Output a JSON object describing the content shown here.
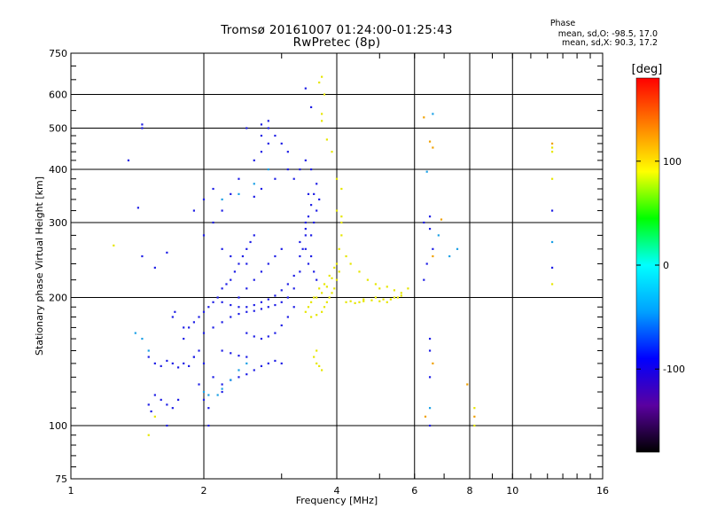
{
  "header": {
    "title": "Tromsø 20161007 01:24:00-01:25:43",
    "subtitle": "RwPretec (8p)"
  },
  "phase_info": {
    "title": "Phase",
    "line_o": "mean, sd,O: -98.5, 17.0",
    "line_x": "mean, sd,X:  90.3, 17.2"
  },
  "colors": {
    "colorbar_stops": [
      "#000000",
      "#5a00a0",
      "#0000ff",
      "#00a0ff",
      "#00ffff",
      "#00ff00",
      "#ffff00",
      "#ff8000",
      "#ff0000"
    ],
    "frame": "#000000"
  },
  "chart_data": {
    "type": "scatter",
    "xlabel": "Frequency [MHz]",
    "ylabel": "Stationary phase Virtual Height [km]",
    "xscale": "log",
    "yscale": "log",
    "xlim": [
      1,
      16
    ],
    "ylim": [
      75,
      750
    ],
    "xticks": [
      1,
      2,
      4,
      6,
      8,
      10,
      16
    ],
    "yticks": [
      75,
      100,
      200,
      300,
      400,
      500,
      600,
      750
    ],
    "grid": true,
    "colorbar": {
      "label": "[deg]",
      "range": [
        -180,
        180
      ],
      "ticks": [
        -100,
        0,
        100
      ]
    },
    "series": [
      {
        "color": "#1e1ee6",
        "points": [
          [
            1.5,
            145
          ],
          [
            1.55,
            140
          ],
          [
            1.6,
            138
          ],
          [
            1.65,
            142
          ],
          [
            1.7,
            140
          ],
          [
            1.75,
            137
          ],
          [
            1.8,
            140
          ],
          [
            1.85,
            138
          ],
          [
            1.9,
            145
          ],
          [
            1.95,
            150
          ],
          [
            1.55,
            118
          ],
          [
            1.6,
            115
          ],
          [
            1.65,
            112
          ],
          [
            1.7,
            110
          ],
          [
            1.75,
            115
          ],
          [
            1.65,
            100
          ],
          [
            1.5,
            112
          ],
          [
            1.52,
            108
          ],
          [
            1.8,
            160
          ],
          [
            1.85,
            170
          ],
          [
            1.9,
            175
          ],
          [
            1.95,
            180
          ],
          [
            2.0,
            185
          ],
          [
            2.05,
            190
          ],
          [
            2.1,
            195
          ],
          [
            2.15,
            200
          ],
          [
            2.2,
            210
          ],
          [
            2.25,
            215
          ],
          [
            2.3,
            220
          ],
          [
            2.35,
            230
          ],
          [
            2.4,
            240
          ],
          [
            2.45,
            250
          ],
          [
            2.5,
            260
          ],
          [
            2.55,
            270
          ],
          [
            2.6,
            280
          ],
          [
            2.0,
            165
          ],
          [
            2.1,
            170
          ],
          [
            2.2,
            175
          ],
          [
            2.3,
            180
          ],
          [
            2.4,
            183
          ],
          [
            2.5,
            185
          ],
          [
            2.6,
            186
          ],
          [
            2.7,
            188
          ],
          [
            2.8,
            190
          ],
          [
            2.9,
            192
          ],
          [
            3.0,
            195
          ],
          [
            3.1,
            200
          ],
          [
            3.2,
            210
          ],
          [
            3.3,
            230
          ],
          [
            3.35,
            260
          ],
          [
            3.4,
            300
          ],
          [
            3.45,
            350
          ],
          [
            3.5,
            400
          ],
          [
            2.2,
            195
          ],
          [
            2.3,
            192
          ],
          [
            2.4,
            190
          ],
          [
            2.5,
            190
          ],
          [
            2.6,
            192
          ],
          [
            2.7,
            195
          ],
          [
            2.8,
            198
          ],
          [
            2.9,
            202
          ],
          [
            3.0,
            208
          ],
          [
            3.1,
            215
          ],
          [
            3.2,
            225
          ],
          [
            3.3,
            250
          ],
          [
            3.4,
            280
          ],
          [
            2.5,
            165
          ],
          [
            2.6,
            162
          ],
          [
            2.7,
            160
          ],
          [
            2.8,
            162
          ],
          [
            2.9,
            165
          ],
          [
            3.0,
            172
          ],
          [
            3.1,
            180
          ],
          [
            3.2,
            190
          ],
          [
            2.2,
            125
          ],
          [
            2.3,
            128
          ],
          [
            2.4,
            130
          ],
          [
            2.5,
            132
          ],
          [
            2.6,
            135
          ],
          [
            2.7,
            138
          ],
          [
            2.8,
            140
          ],
          [
            2.9,
            142
          ],
          [
            3.0,
            140
          ],
          [
            2.2,
            150
          ],
          [
            2.3,
            148
          ],
          [
            2.4,
            146
          ],
          [
            2.5,
            145
          ],
          [
            3.3,
            270
          ],
          [
            3.4,
            290
          ],
          [
            3.45,
            310
          ],
          [
            3.5,
            330
          ],
          [
            3.55,
            350
          ],
          [
            3.6,
            370
          ],
          [
            3.5,
            250
          ],
          [
            3.55,
            230
          ],
          [
            3.6,
            220
          ],
          [
            3.45,
            240
          ],
          [
            3.4,
            260
          ],
          [
            3.5,
            280
          ],
          [
            3.55,
            300
          ],
          [
            3.6,
            320
          ],
          [
            3.65,
            340
          ],
          [
            2.7,
            230
          ],
          [
            2.8,
            240
          ],
          [
            2.9,
            250
          ],
          [
            3.0,
            260
          ],
          [
            2.6,
            220
          ],
          [
            2.5,
            210
          ],
          [
            2.4,
            200
          ],
          [
            2.6,
            420
          ],
          [
            2.7,
            440
          ],
          [
            2.8,
            460
          ],
          [
            2.9,
            480
          ],
          [
            3.0,
            460
          ],
          [
            3.1,
            440
          ],
          [
            2.7,
            480
          ],
          [
            2.8,
            500
          ],
          [
            3.2,
            380
          ],
          [
            3.3,
            400
          ],
          [
            3.4,
            420
          ],
          [
            2.4,
            380
          ],
          [
            2.3,
            350
          ],
          [
            2.2,
            320
          ],
          [
            2.1,
            300
          ],
          [
            2.0,
            280
          ],
          [
            2.2,
            260
          ],
          [
            2.3,
            250
          ],
          [
            2.5,
            240
          ],
          [
            1.9,
            320
          ],
          [
            2.0,
            340
          ],
          [
            2.1,
            360
          ],
          [
            2.6,
            345
          ],
          [
            2.7,
            360
          ],
          [
            2.9,
            380
          ],
          [
            3.1,
            400
          ],
          [
            2.5,
            500
          ],
          [
            2.7,
            510
          ],
          [
            2.8,
            520
          ],
          [
            3.4,
            620
          ],
          [
            3.5,
            560
          ],
          [
            1.45,
            500
          ],
          [
            1.45,
            510
          ],
          [
            1.35,
            420
          ],
          [
            1.42,
            325
          ],
          [
            1.65,
            255
          ],
          [
            1.55,
            235
          ],
          [
            1.45,
            250
          ],
          [
            1.9,
            145
          ],
          [
            2.0,
            140
          ],
          [
            2.1,
            130
          ],
          [
            2.2,
            120
          ],
          [
            1.95,
            125
          ],
          [
            2.0,
            115
          ],
          [
            2.05,
            110
          ],
          [
            1.7,
            180
          ],
          [
            1.72,
            185
          ],
          [
            1.8,
            170
          ],
          [
            2.05,
            100
          ],
          [
            6.5,
            100
          ],
          [
            6.5,
            150
          ],
          [
            6.5,
            160
          ],
          [
            6.5,
            130
          ],
          [
            6.3,
            300
          ],
          [
            6.5,
            310
          ],
          [
            6.5,
            290
          ],
          [
            6.4,
            240
          ],
          [
            6.3,
            220
          ],
          [
            6.6,
            260
          ],
          [
            12.3,
            235
          ],
          [
            12.3,
            320
          ]
        ]
      },
      {
        "color": "#1aa0e6",
        "points": [
          [
            2.0,
            120
          ],
          [
            2.05,
            118
          ],
          [
            2.15,
            118
          ],
          [
            2.2,
            122
          ],
          [
            2.3,
            128
          ],
          [
            2.4,
            135
          ],
          [
            2.5,
            140
          ],
          [
            1.4,
            165
          ],
          [
            1.45,
            160
          ],
          [
            1.5,
            150
          ],
          [
            2.2,
            340
          ],
          [
            2.4,
            350
          ],
          [
            2.6,
            370
          ],
          [
            2.8,
            400
          ],
          [
            6.4,
            395
          ],
          [
            6.6,
            540
          ],
          [
            6.5,
            110
          ],
          [
            6.8,
            280
          ],
          [
            7.2,
            250
          ],
          [
            7.5,
            260
          ],
          [
            12.3,
            270
          ]
        ]
      },
      {
        "color": "#e6e600",
        "points": [
          [
            3.5,
            180
          ],
          [
            3.6,
            182
          ],
          [
            3.7,
            185
          ],
          [
            3.75,
            190
          ],
          [
            3.8,
            195
          ],
          [
            3.85,
            200
          ],
          [
            3.9,
            205
          ],
          [
            3.95,
            210
          ],
          [
            4.0,
            220
          ],
          [
            4.05,
            230
          ],
          [
            3.6,
            200
          ],
          [
            3.7,
            205
          ],
          [
            3.8,
            212
          ],
          [
            3.9,
            222
          ],
          [
            4.0,
            240
          ],
          [
            4.05,
            260
          ],
          [
            4.1,
            280
          ],
          [
            4.1,
            300
          ],
          [
            4.1,
            310
          ],
          [
            4.0,
            320
          ],
          [
            3.4,
            185
          ],
          [
            3.45,
            190
          ],
          [
            3.5,
            195
          ],
          [
            3.55,
            200
          ],
          [
            3.65,
            210
          ],
          [
            3.75,
            215
          ],
          [
            3.85,
            225
          ],
          [
            3.95,
            235
          ],
          [
            4.2,
            195
          ],
          [
            4.3,
            196
          ],
          [
            4.4,
            194
          ],
          [
            4.5,
            195
          ],
          [
            4.6,
            196
          ],
          [
            4.8,
            197
          ],
          [
            5.0,
            196
          ],
          [
            5.2,
            195
          ],
          [
            5.4,
            200
          ],
          [
            5.6,
            205
          ],
          [
            5.8,
            210
          ],
          [
            4.6,
            198
          ],
          [
            4.9,
            200
          ],
          [
            5.1,
            198
          ],
          [
            5.3,
            198
          ],
          [
            5.5,
            200
          ],
          [
            5.0,
            210
          ],
          [
            5.2,
            212
          ],
          [
            5.4,
            208
          ],
          [
            5.6,
            202
          ],
          [
            3.6,
            140
          ],
          [
            3.65,
            138
          ],
          [
            3.7,
            135
          ],
          [
            3.55,
            145
          ],
          [
            3.6,
            150
          ],
          [
            3.7,
            520
          ],
          [
            3.7,
            540
          ],
          [
            3.75,
            600
          ],
          [
            3.65,
            640
          ],
          [
            3.7,
            660
          ],
          [
            3.8,
            470
          ],
          [
            3.9,
            440
          ],
          [
            4.0,
            380
          ],
          [
            4.1,
            360
          ],
          [
            4.2,
            250
          ],
          [
            4.3,
            240
          ],
          [
            4.5,
            230
          ],
          [
            4.7,
            220
          ],
          [
            4.9,
            215
          ],
          [
            1.25,
            265
          ],
          [
            1.5,
            95
          ],
          [
            1.55,
            105
          ],
          [
            8.2,
            100
          ],
          [
            8.2,
            110
          ],
          [
            12.3,
            450
          ],
          [
            12.3,
            440
          ],
          [
            12.3,
            380
          ],
          [
            12.3,
            215
          ]
        ]
      },
      {
        "color": "#f0a000",
        "points": [
          [
            6.3,
            530
          ],
          [
            6.35,
            105
          ],
          [
            6.5,
            465
          ],
          [
            6.6,
            450
          ],
          [
            6.6,
            140
          ],
          [
            6.9,
            305
          ],
          [
            6.6,
            250
          ],
          [
            7.9,
            125
          ],
          [
            8.2,
            105
          ],
          [
            12.3,
            460
          ]
        ]
      }
    ]
  }
}
